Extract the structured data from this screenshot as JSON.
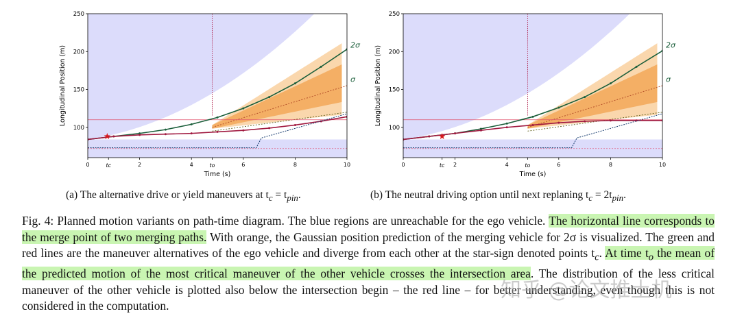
{
  "chart_data": [
    {
      "type": "line",
      "xlabel": "Time (s)",
      "ylabel": "Longitudinal Position (m)",
      "xlim": [
        0,
        10
      ],
      "ylim": [
        60,
        250
      ],
      "xticks": [
        "0",
        "2",
        "4",
        "6",
        "8",
        "10"
      ],
      "yticks": [
        "100",
        "150",
        "200",
        "250"
      ],
      "extra_xtick_labels": [
        {
          "x": 0.8,
          "label": "tc"
        },
        {
          "x": 4.8,
          "label": "to"
        }
      ],
      "annotations": [
        "2σ",
        "σ"
      ],
      "grid": false,
      "merge_point_y": 110,
      "lower_line_y": 72,
      "star": {
        "x": 0.75,
        "y": 88
      },
      "series": [
        {
          "color": "#1a5e3a",
          "x": [
            0,
            1,
            2,
            3,
            4,
            5,
            6,
            7,
            8,
            9,
            10
          ],
          "y": [
            84,
            88,
            92,
            97,
            104,
            113,
            125,
            140,
            158,
            180,
            203
          ]
        },
        {
          "color": "#a0183f",
          "x": [
            0,
            1,
            2,
            3,
            4,
            5,
            6,
            7,
            8,
            9,
            10
          ],
          "y": [
            84,
            88,
            90,
            91,
            92,
            94,
            96,
            99,
            103,
            108,
            114
          ]
        },
        {
          "color": "#163b6e",
          "x": [
            0,
            6.5,
            6.7,
            10
          ],
          "y": [
            73,
            73,
            86,
            118
          ]
        }
      ]
    },
    {
      "type": "line",
      "xlabel": "Time (s)",
      "ylabel": "Longitudinal Position (m)",
      "xlim": [
        0,
        10
      ],
      "ylim": [
        60,
        250
      ],
      "xticks": [
        "0",
        "2",
        "4",
        "6",
        "8",
        "10"
      ],
      "yticks": [
        "100",
        "150",
        "200",
        "250"
      ],
      "extra_xtick_labels": [
        {
          "x": 1.5,
          "label": "tc"
        },
        {
          "x": 4.8,
          "label": "to"
        }
      ],
      "annotations": [
        "2σ",
        "σ"
      ],
      "grid": false,
      "merge_point_y": 110,
      "lower_line_y": 72,
      "star": {
        "x": 1.5,
        "y": 88
      },
      "series": [
        {
          "color": "#1a5e3a",
          "x": [
            0,
            1,
            2,
            3,
            4,
            5,
            6,
            7,
            8,
            9,
            10
          ],
          "y": [
            84,
            88,
            92,
            98,
            105,
            114,
            126,
            140,
            158,
            180,
            201
          ]
        },
        {
          "color": "#a0183f",
          "x": [
            0,
            1,
            2,
            3,
            4,
            5,
            6,
            7,
            8,
            9,
            10
          ],
          "y": [
            84,
            88,
            92,
            96,
            100,
            103,
            106,
            108,
            109,
            109,
            109
          ]
        },
        {
          "color": "#163b6e",
          "x": [
            0,
            6.5,
            6.7,
            10
          ],
          "y": [
            73,
            73,
            86,
            118
          ]
        }
      ]
    }
  ],
  "subcaptions": {
    "a": "(a) The alternative drive or yield maneuvers at t",
    "a_eq": " = t",
    "a_end": ".",
    "b": "(b) The neutral driving option until next replaning t",
    "b_eq": " = 2t",
    "b_end": ".",
    "sub_c": "c",
    "sub_pin": "pin"
  },
  "caption": {
    "p1": "Fig. 4:  Planned motion variants on path-time diagram. The blue regions are unreachable for the ego vehicle. ",
    "h1": "The horizontal line corresponds to the merge point of two merging paths.",
    "p2": " With orange, the Gaussian position prediction of the merging vehicle for 2σ is visualized. The green and red lines are the maneuver alternatives of the ego vehicle and diverge from each other at the star-sign denoted points t",
    "sub_c": "c",
    "p3": ". ",
    "h2a": "At time t",
    "sub_o": "o",
    "h2b": " the mean of the predicted motion of the most critical maneuver of the other vehicle crosses the intersection area",
    "p4": ". The distribution of the less critical maneuver of the other vehicle is plotted also below the intersection begin – the red line – for better understanding, even though this is not considered in the computation."
  },
  "watermark": "知乎 @论文推土机"
}
